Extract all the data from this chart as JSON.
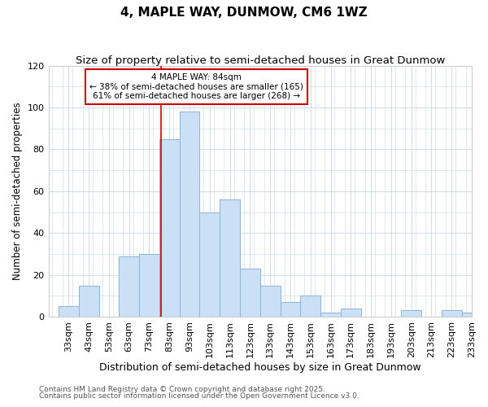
{
  "title": "4, MAPLE WAY, DUNMOW, CM6 1WZ",
  "subtitle": "Size of property relative to semi-detached houses in Great Dunmow",
  "xlabel": "Distribution of semi-detached houses by size in Great Dunmow",
  "ylabel": "Number of semi-detached properties",
  "footnote1": "Contains HM Land Registry data © Crown copyright and database right 2025.",
  "footnote2": "Contains public sector information licensed under the Open Government Licence v3.0.",
  "bin_labels": [
    "33sqm",
    "43sqm",
    "53sqm",
    "63sqm",
    "73sqm",
    "83sqm",
    "93sqm",
    "103sqm",
    "113sqm",
    "123sqm",
    "133sqm",
    "143sqm",
    "153sqm",
    "163sqm",
    "173sqm",
    "183sqm",
    "193sqm",
    "203sqm",
    "213sqm",
    "223sqm",
    "233sqm"
  ],
  "bin_left_edges": [
    33,
    43,
    53,
    63,
    73,
    83,
    93,
    103,
    113,
    123,
    133,
    143,
    153,
    163,
    173,
    183,
    193,
    203,
    213,
    223,
    233
  ],
  "bar_heights": [
    5,
    15,
    0,
    29,
    30,
    85,
    98,
    50,
    56,
    23,
    15,
    7,
    10,
    2,
    4,
    0,
    0,
    3,
    0,
    3,
    2
  ],
  "property_size": 84,
  "property_label": "4 MAPLE WAY: 84sqm",
  "smaller_pct": 38,
  "smaller_count": 165,
  "larger_pct": 61,
  "larger_count": 268,
  "bar_color": "#cce0f5",
  "bar_edge_color": "#8ab4d8",
  "vline_color": "#cc0000",
  "annotation_box_edge_color": "#cc0000",
  "ylim": [
    0,
    120
  ],
  "yticks": [
    0,
    20,
    40,
    60,
    80,
    100,
    120
  ],
  "background_color": "#ffffff",
  "plot_bg_color": "#ffffff",
  "grid_color": "#c8d8e8",
  "title_fontsize": 11,
  "subtitle_fontsize": 9.5,
  "xlabel_fontsize": 9,
  "ylabel_fontsize": 8.5,
  "tick_fontsize": 8,
  "annotation_fontsize": 7.5,
  "footnote_fontsize": 6.5
}
